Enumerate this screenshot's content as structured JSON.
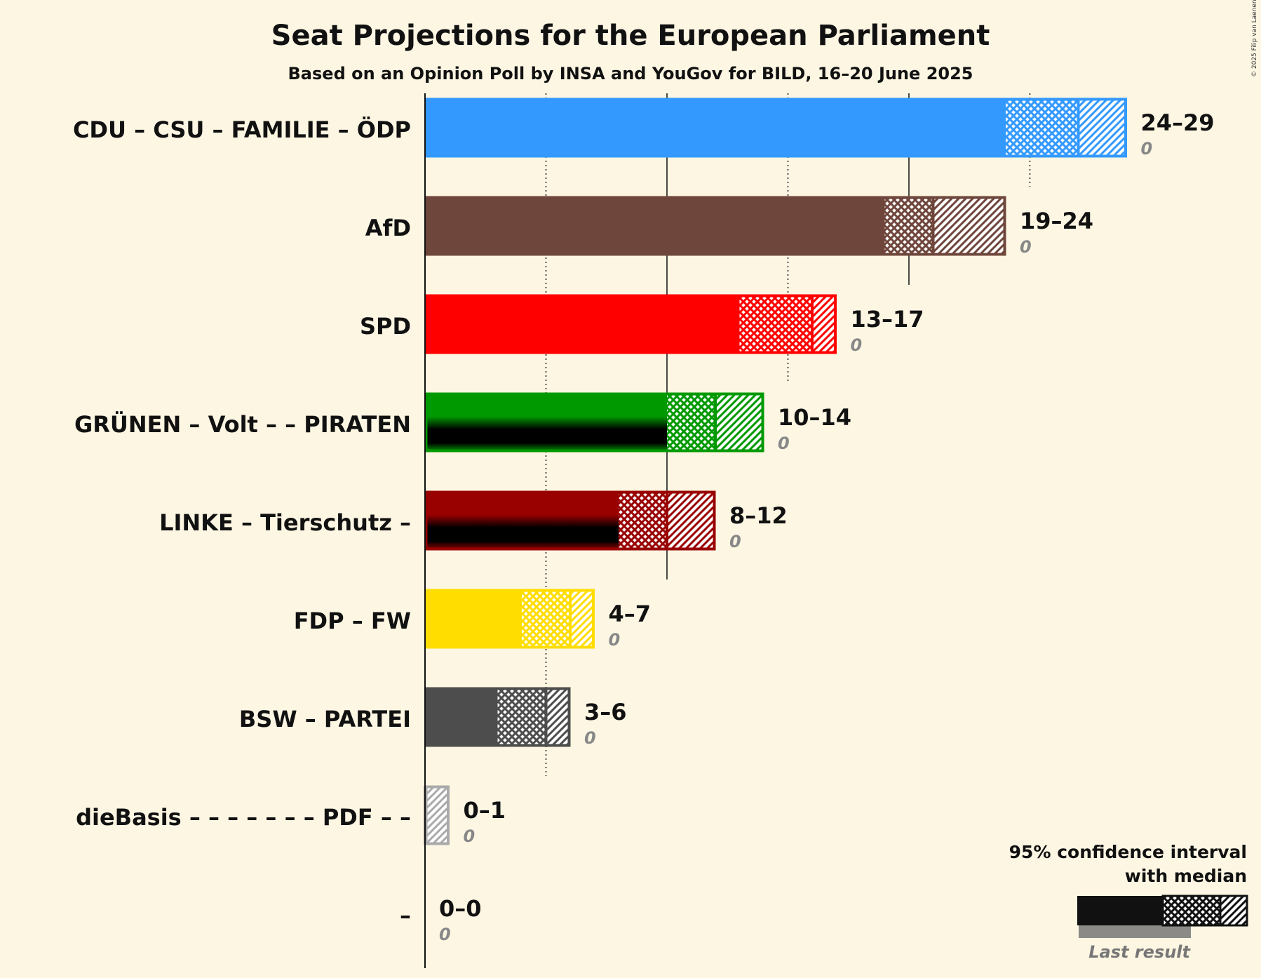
{
  "chart_data": {
    "type": "bar",
    "title": "Seat Projections for the European Parliament",
    "subtitle": "Based on an Opinion Poll by INSA and YouGov for BILD, 16–20 June 2025",
    "copyright": "© 2025 Filip van Laenen",
    "categories": [
      "CDU – CSU – FAMILIE – ÖDP",
      "AfD",
      "SPD",
      "GRÜNEN – Volt – – PIRATEN",
      "LINKE – Tierschutz –",
      "FDP – FW",
      "BSW – PARTEI",
      "dieBasis – – – – – – – PDF – –",
      "–"
    ],
    "series": [
      {
        "name": "95% confidence interval low",
        "values": [
          24,
          19,
          13,
          10,
          8,
          4,
          3,
          0,
          0
        ]
      },
      {
        "name": "median",
        "values": [
          27,
          21,
          16,
          12,
          10,
          6,
          5,
          0,
          0
        ]
      },
      {
        "name": "95% confidence interval high",
        "values": [
          29,
          24,
          17,
          14,
          12,
          7,
          6,
          1,
          0
        ]
      },
      {
        "name": "Last result",
        "values": [
          0,
          0,
          0,
          0,
          0,
          0,
          0,
          0,
          0
        ]
      }
    ],
    "range_labels": [
      "24–29",
      "19–24",
      "13–17",
      "10–14",
      "8–12",
      "4–7",
      "3–6",
      "0–1",
      "0–0"
    ],
    "last_result_labels": [
      "0",
      "0",
      "0",
      "0",
      "0",
      "0",
      "0",
      "0",
      "0"
    ],
    "colors": [
      "#3399ff",
      "#6f463b",
      "#ff0000",
      "#009900",
      "#990000",
      "#ffdd00",
      "#4d4d4d",
      "#aaaaaa",
      "#111111"
    ],
    "stripe_colors": [
      null,
      null,
      null,
      "#000000",
      "#000000",
      null,
      null,
      null,
      null
    ],
    "xlim": [
      0,
      30
    ],
    "gridlines": [
      5,
      10,
      15,
      20,
      25
    ],
    "legend": {
      "title_line1": "95% confidence interval",
      "title_line2": "with median",
      "last_result": "Last result",
      "position": "bottom-right"
    }
  }
}
